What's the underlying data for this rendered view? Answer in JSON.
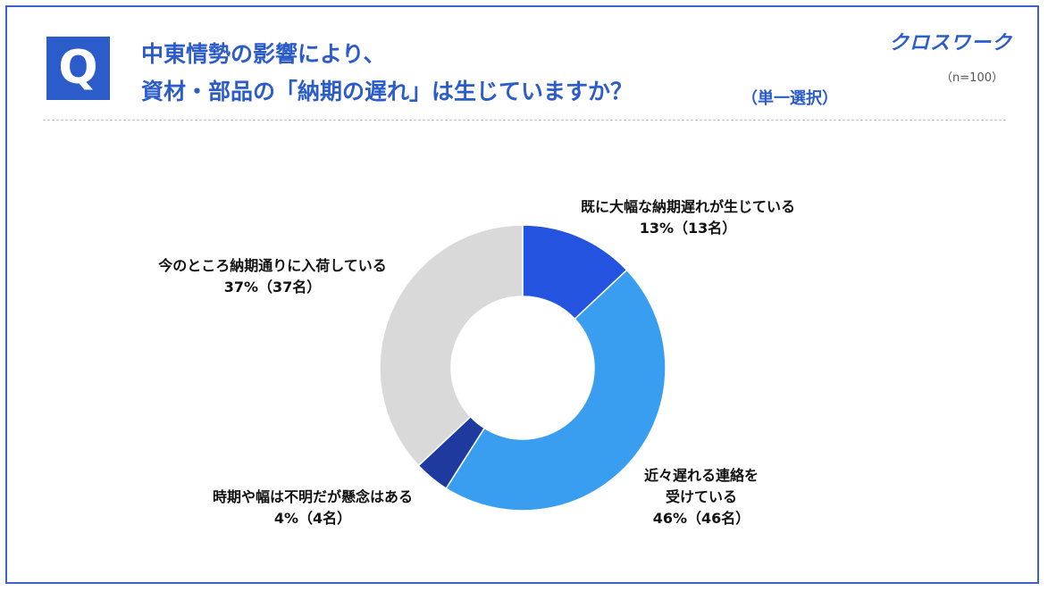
{
  "header": {
    "badge": "Q",
    "title_line1": "中東情勢の影響により、",
    "title_line2": "資材・部品の「納期の遅れ」は生じていますか？",
    "title_note": "（単一選択）",
    "logo": "クロスワーク",
    "sample": "（n=100）"
  },
  "chart_data": {
    "type": "pie",
    "title": "",
    "donut": true,
    "categories": [
      "既に大幅な納期遅れが生じている",
      "近々遅れる連絡を受けている",
      "時期や幅は不明だが懸念はある",
      "今のところ納期通りに入荷している"
    ],
    "values": [
      13,
      46,
      4,
      37
    ],
    "counts": [
      "13名",
      "46名",
      "4名",
      "37名"
    ],
    "unit": "%",
    "colors": [
      "#2453e0",
      "#3a9ef0",
      "#1e3a9e",
      "#d9d9d9"
    ]
  },
  "labels": [
    {
      "line1": "既に大幅な納期遅れが生じている",
      "line2": "13%（13名）"
    },
    {
      "line1": "近々遅れる連絡を",
      "line1b": "受けている",
      "line2": "46%（46名）"
    },
    {
      "line1": "時期や幅は不明だが懸念はある",
      "line2": "4%（4名）"
    },
    {
      "line1": "今のところ納期通りに入荷している",
      "line2": "37%（37名）"
    }
  ]
}
